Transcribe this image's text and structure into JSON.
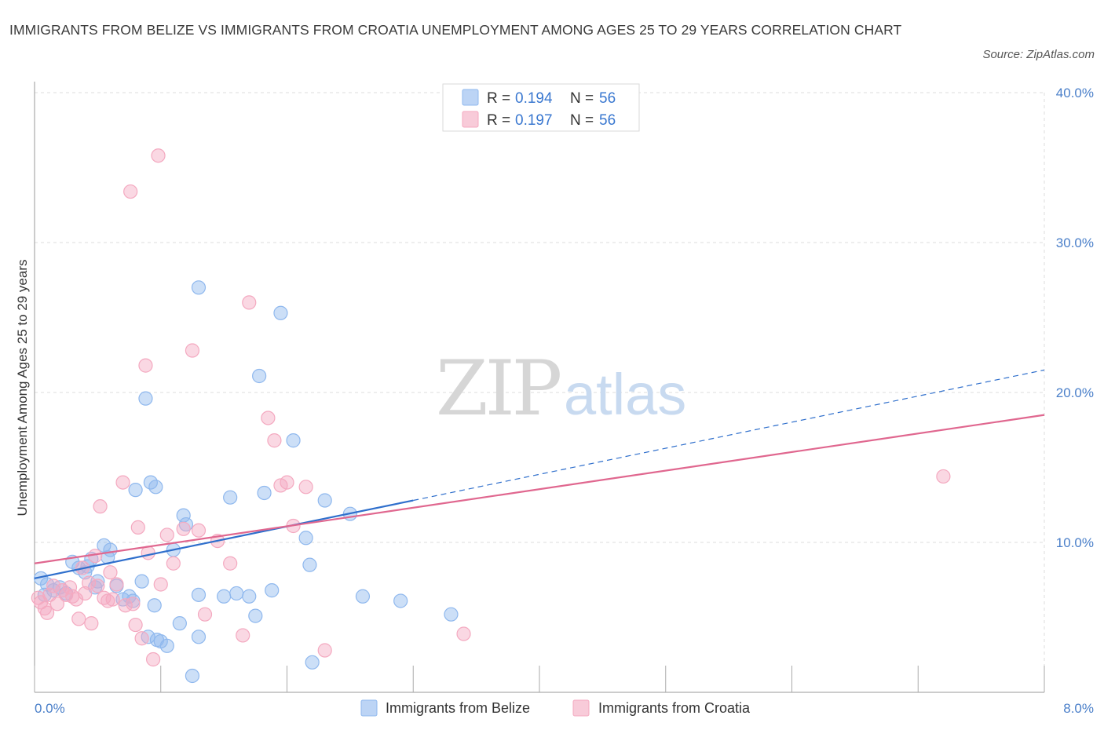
{
  "header": {
    "title": "IMMIGRANTS FROM BELIZE VS IMMIGRANTS FROM CROATIA UNEMPLOYMENT AMONG AGES 25 TO 29 YEARS CORRELATION CHART",
    "source": "Source: ZipAtlas.com"
  },
  "watermark": {
    "zip": "ZIP",
    "atlas": "atlas"
  },
  "chart_data": {
    "type": "scatter",
    "xlabel": "",
    "ylabel": "Unemployment Among Ages 25 to 29 years",
    "xlim": [
      0,
      8
    ],
    "ylim": [
      0,
      40
    ],
    "x_tick_labels": [
      "0.0%",
      "8.0%"
    ],
    "y_ticks": [
      10,
      20,
      30,
      40
    ],
    "y_tick_labels": [
      "10.0%",
      "20.0%",
      "30.0%",
      "40.0%"
    ],
    "grid": true,
    "legend_position": "top-center",
    "legend": [
      {
        "r_label": "R =",
        "r_value": "0.194",
        "n_label": "N =",
        "n_value": "56",
        "color": "#8fb8ee"
      },
      {
        "r_label": "R =",
        "r_value": "0.197",
        "n_label": "N =",
        "n_value": "56",
        "color": "#f4a9c0"
      }
    ],
    "series": [
      {
        "name": "Immigrants from Belize",
        "color": "#8fb8ee",
        "line_color": "#2f6fcc",
        "trend": {
          "solid": [
            [
              0,
              7.6
            ],
            [
              3.0,
              12.8
            ]
          ],
          "dashed": [
            [
              3.0,
              12.8
            ],
            [
              8.0,
              21.5
            ]
          ]
        },
        "points": [
          [
            0.05,
            7.6
          ],
          [
            0.1,
            7.2
          ],
          [
            0.15,
            6.8
          ],
          [
            0.08,
            6.5
          ],
          [
            0.2,
            7.0
          ],
          [
            0.25,
            6.6
          ],
          [
            0.3,
            8.7
          ],
          [
            0.35,
            8.3
          ],
          [
            0.4,
            8.0
          ],
          [
            0.45,
            8.9
          ],
          [
            0.5,
            7.4
          ],
          [
            0.42,
            8.4
          ],
          [
            0.55,
            9.8
          ],
          [
            0.6,
            9.5
          ],
          [
            0.48,
            7.0
          ],
          [
            0.65,
            7.1
          ],
          [
            0.7,
            6.2
          ],
          [
            0.58,
            9.0
          ],
          [
            0.75,
            6.4
          ],
          [
            0.8,
            13.5
          ],
          [
            0.85,
            7.4
          ],
          [
            0.9,
            3.7
          ],
          [
            0.95,
            5.8
          ],
          [
            0.97,
            3.5
          ],
          [
            1.0,
            3.4
          ],
          [
            0.78,
            6.1
          ],
          [
            1.05,
            3.1
          ],
          [
            0.88,
            19.6
          ],
          [
            0.92,
            14.0
          ],
          [
            0.96,
            13.7
          ],
          [
            1.1,
            9.5
          ],
          [
            1.15,
            4.6
          ],
          [
            1.18,
            11.8
          ],
          [
            1.2,
            11.2
          ],
          [
            1.25,
            1.1
          ],
          [
            1.3,
            3.7
          ],
          [
            1.3,
            27.0
          ],
          [
            1.3,
            6.5
          ],
          [
            1.5,
            6.4
          ],
          [
            1.55,
            13.0
          ],
          [
            1.6,
            6.6
          ],
          [
            1.7,
            6.4
          ],
          [
            1.75,
            5.1
          ],
          [
            1.78,
            21.1
          ],
          [
            1.82,
            13.3
          ],
          [
            1.88,
            6.8
          ],
          [
            1.95,
            25.3
          ],
          [
            2.05,
            16.8
          ],
          [
            2.15,
            10.3
          ],
          [
            2.18,
            8.5
          ],
          [
            2.2,
            2.0
          ],
          [
            2.3,
            12.8
          ],
          [
            2.5,
            11.9
          ],
          [
            2.6,
            6.4
          ],
          [
            2.9,
            6.1
          ],
          [
            3.3,
            5.2
          ]
        ]
      },
      {
        "name": "Immigrants from Croatia",
        "color": "#f4a9c0",
        "line_color": "#e0678f",
        "trend": {
          "solid": [
            [
              0,
              8.6
            ],
            [
              8.0,
              18.5
            ]
          ],
          "dashed": []
        },
        "points": [
          [
            0.03,
            6.3
          ],
          [
            0.05,
            6.0
          ],
          [
            0.08,
            5.6
          ],
          [
            0.1,
            5.3
          ],
          [
            0.12,
            6.5
          ],
          [
            0.15,
            7.1
          ],
          [
            0.18,
            5.9
          ],
          [
            0.22,
            6.8
          ],
          [
            0.25,
            6.5
          ],
          [
            0.28,
            7.0
          ],
          [
            0.3,
            6.4
          ],
          [
            0.33,
            6.2
          ],
          [
            0.35,
            4.9
          ],
          [
            0.38,
            8.3
          ],
          [
            0.4,
            6.6
          ],
          [
            0.43,
            7.3
          ],
          [
            0.45,
            4.6
          ],
          [
            0.48,
            9.1
          ],
          [
            0.5,
            7.1
          ],
          [
            0.52,
            12.4
          ],
          [
            0.55,
            6.3
          ],
          [
            0.58,
            6.1
          ],
          [
            0.6,
            8.0
          ],
          [
            0.62,
            6.2
          ],
          [
            0.65,
            7.2
          ],
          [
            0.7,
            14.0
          ],
          [
            0.72,
            5.8
          ],
          [
            0.76,
            33.4
          ],
          [
            0.78,
            5.9
          ],
          [
            0.8,
            4.5
          ],
          [
            0.82,
            11.0
          ],
          [
            0.85,
            3.6
          ],
          [
            0.88,
            21.8
          ],
          [
            0.9,
            9.3
          ],
          [
            0.94,
            2.2
          ],
          [
            0.98,
            35.8
          ],
          [
            1.0,
            7.2
          ],
          [
            1.05,
            10.5
          ],
          [
            1.1,
            8.6
          ],
          [
            1.18,
            10.9
          ],
          [
            1.25,
            22.8
          ],
          [
            1.3,
            10.8
          ],
          [
            1.35,
            5.2
          ],
          [
            1.45,
            10.1
          ],
          [
            1.55,
            8.6
          ],
          [
            1.65,
            3.8
          ],
          [
            1.7,
            26.0
          ],
          [
            1.85,
            18.3
          ],
          [
            1.9,
            16.8
          ],
          [
            1.95,
            13.8
          ],
          [
            2.0,
            14.0
          ],
          [
            2.05,
            11.1
          ],
          [
            2.15,
            13.7
          ],
          [
            2.3,
            2.8
          ],
          [
            3.4,
            3.9
          ],
          [
            7.2,
            14.4
          ]
        ]
      }
    ]
  }
}
